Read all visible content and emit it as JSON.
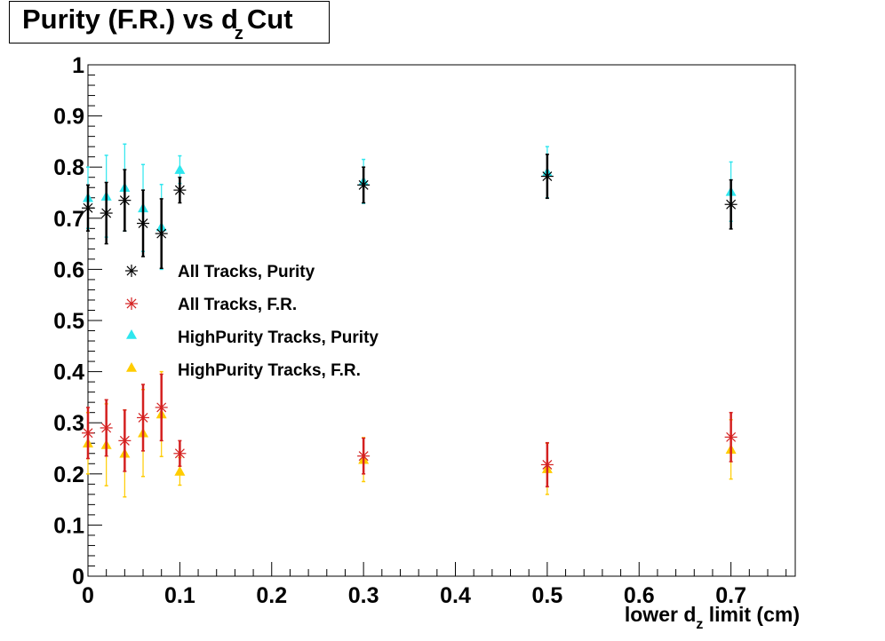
{
  "chart_data": {
    "type": "scatter",
    "title": {
      "prefix": "Purity (F.R.) vs ",
      "d": "d",
      "sub": "z",
      "suffix": "Cut"
    },
    "xlabel": {
      "prefix": "lower d",
      "sub": "z",
      "suffix": " limit (cm)"
    },
    "ylabel": "",
    "xlim": [
      0,
      0.77
    ],
    "ylim": [
      0,
      1
    ],
    "xticks": [
      "0",
      "0.1",
      "0.2",
      "0.3",
      "0.4",
      "0.5",
      "0.6",
      "0.7"
    ],
    "yticks": [
      "0",
      "0.1",
      "0.2",
      "0.3",
      "0.4",
      "0.5",
      "0.6",
      "0.7",
      "0.8",
      "0.9",
      "1"
    ],
    "grid": false,
    "legend_position": "center-left",
    "series": [
      {
        "name": "All Tracks, Purity",
        "marker": "star",
        "color": "#000000",
        "error_color": "#000000",
        "points": [
          {
            "x": 0.0,
            "y": 0.72,
            "err": 0.045
          },
          {
            "x": 0.02,
            "y": 0.71,
            "err": 0.06
          },
          {
            "x": 0.04,
            "y": 0.735,
            "err": 0.06
          },
          {
            "x": 0.06,
            "y": 0.69,
            "err": 0.065
          },
          {
            "x": 0.08,
            "y": 0.67,
            "err": 0.068
          },
          {
            "x": 0.1,
            "y": 0.755,
            "err": 0.025
          },
          {
            "x": 0.3,
            "y": 0.765,
            "err": 0.035
          },
          {
            "x": 0.5,
            "y": 0.782,
            "err": 0.043
          },
          {
            "x": 0.7,
            "y": 0.727,
            "err": 0.048
          }
        ]
      },
      {
        "name": "All Tracks, F.R.",
        "marker": "star",
        "color": "#d42020",
        "error_color": "#d42020",
        "points": [
          {
            "x": 0.0,
            "y": 0.28,
            "err": 0.05
          },
          {
            "x": 0.02,
            "y": 0.29,
            "err": 0.055
          },
          {
            "x": 0.04,
            "y": 0.265,
            "err": 0.06
          },
          {
            "x": 0.06,
            "y": 0.31,
            "err": 0.065
          },
          {
            "x": 0.08,
            "y": 0.33,
            "err": 0.065
          },
          {
            "x": 0.1,
            "y": 0.24,
            "err": 0.025
          },
          {
            "x": 0.3,
            "y": 0.235,
            "err": 0.035
          },
          {
            "x": 0.5,
            "y": 0.218,
            "err": 0.043
          },
          {
            "x": 0.7,
            "y": 0.272,
            "err": 0.048
          }
        ]
      },
      {
        "name": "HighPurity Tracks, Purity",
        "marker": "triangle",
        "color": "#2ee6ee",
        "error_color": "#2ee6ee",
        "points": [
          {
            "x": 0.0,
            "y": 0.74,
            "err": 0.06
          },
          {
            "x": 0.02,
            "y": 0.743,
            "err": 0.08
          },
          {
            "x": 0.04,
            "y": 0.76,
            "err": 0.085
          },
          {
            "x": 0.06,
            "y": 0.72,
            "err": 0.085
          },
          {
            "x": 0.08,
            "y": 0.683,
            "err": 0.083
          },
          {
            "x": 0.1,
            "y": 0.795,
            "err": 0.027
          },
          {
            "x": 0.3,
            "y": 0.772,
            "err": 0.043
          },
          {
            "x": 0.5,
            "y": 0.79,
            "err": 0.05
          },
          {
            "x": 0.7,
            "y": 0.752,
            "err": 0.058
          }
        ]
      },
      {
        "name": "HighPurity Tracks, F.R.",
        "marker": "triangle",
        "color": "#ffcc00",
        "error_color": "#ffcc00",
        "points": [
          {
            "x": 0.0,
            "y": 0.26,
            "err": 0.06
          },
          {
            "x": 0.02,
            "y": 0.257,
            "err": 0.08
          },
          {
            "x": 0.04,
            "y": 0.24,
            "err": 0.085
          },
          {
            "x": 0.06,
            "y": 0.28,
            "err": 0.085
          },
          {
            "x": 0.08,
            "y": 0.317,
            "err": 0.083
          },
          {
            "x": 0.1,
            "y": 0.205,
            "err": 0.027
          },
          {
            "x": 0.3,
            "y": 0.228,
            "err": 0.043
          },
          {
            "x": 0.5,
            "y": 0.21,
            "err": 0.05
          },
          {
            "x": 0.7,
            "y": 0.248,
            "err": 0.058
          }
        ]
      }
    ]
  }
}
